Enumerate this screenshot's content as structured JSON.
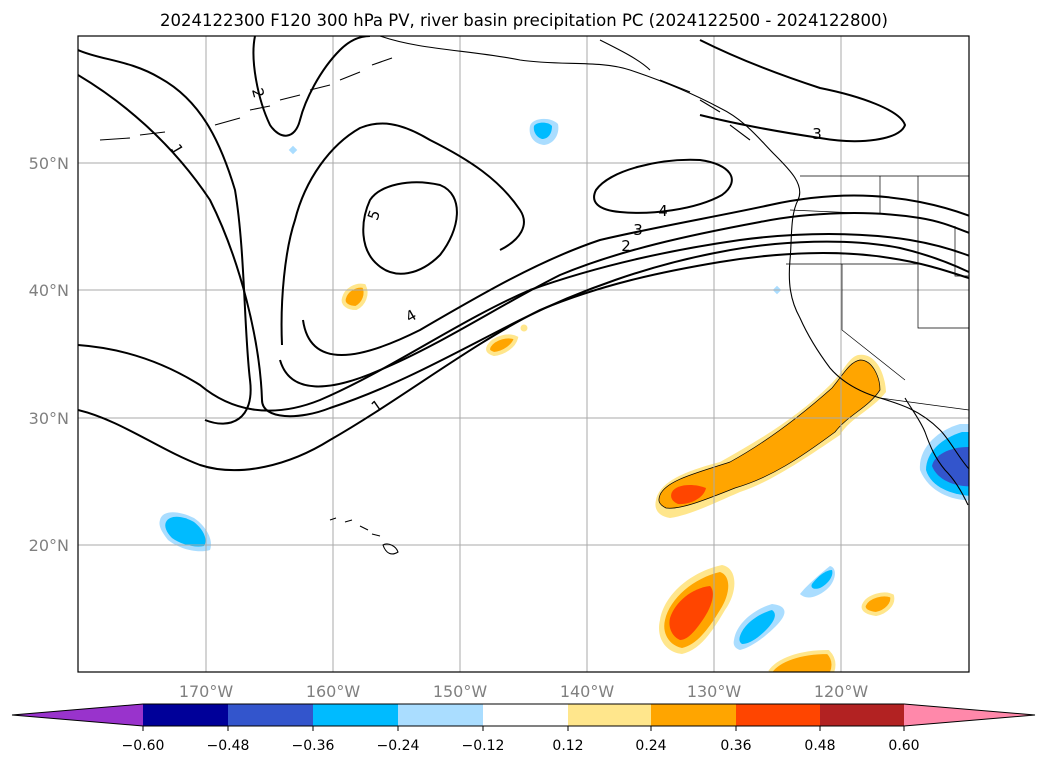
{
  "title": "2024122300 F120 300 hPa PV, river basin precipitation PC (2024122500 - 2024122800)",
  "lat_labels": [
    "50°N",
    "40°N",
    "30°N",
    "20°N"
  ],
  "lon_labels": [
    "170°W",
    "160°W",
    "150°W",
    "140°W",
    "130°W",
    "120°W"
  ],
  "contour_labels": [
    "1",
    "2",
    "5",
    "4",
    "3",
    "2",
    "1",
    "4",
    "3"
  ],
  "colorbar": {
    "ticks": [
      "−0.60",
      "−0.48",
      "−0.36",
      "−0.24",
      "−0.12",
      "0.12",
      "0.24",
      "0.36",
      "0.48",
      "0.60"
    ],
    "colors": [
      "#9933cc",
      "#000099",
      "#3355cc",
      "#00bbff",
      "#aaddff",
      "#ffffff",
      "#ffe68c",
      "#ffa500",
      "#ff4500",
      "#b22222",
      "#ff88aa"
    ]
  },
  "colors": {
    "grid": "#aaaaaa",
    "axis_label": "#808080",
    "contour": "#000000"
  }
}
